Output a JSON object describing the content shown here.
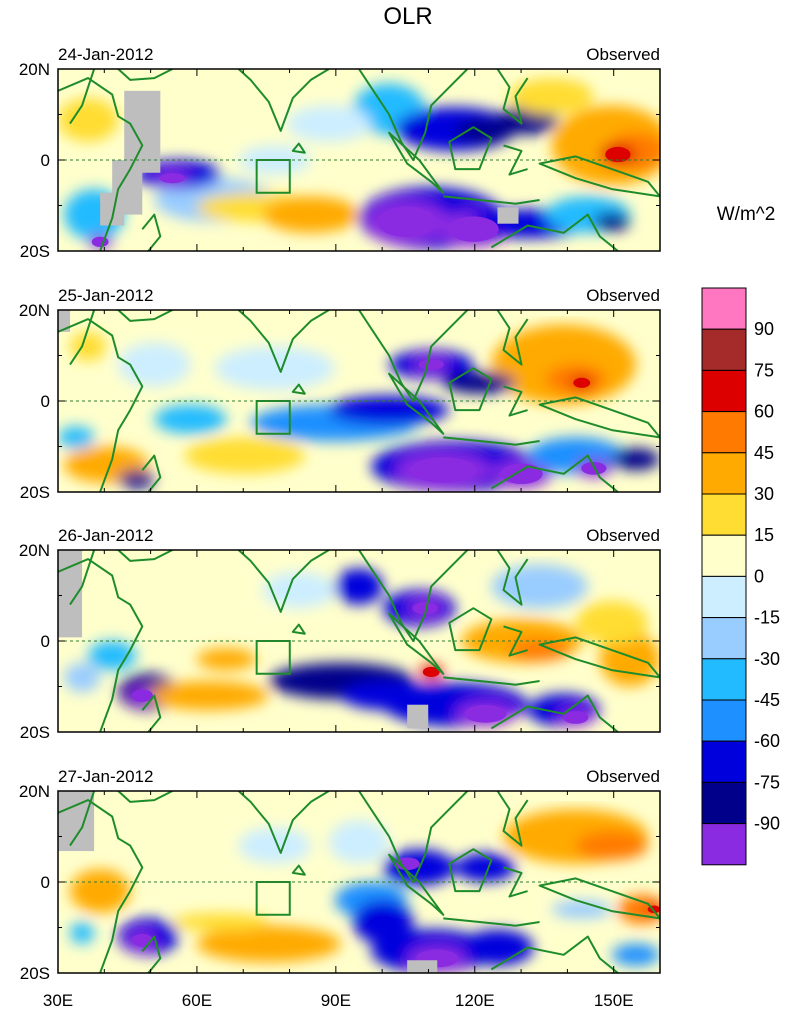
{
  "figure": {
    "title": "OLR",
    "units": "W/m^2"
  },
  "panels": [
    {
      "date": "24-Jan-2012",
      "label": "Observed"
    },
    {
      "date": "25-Jan-2012",
      "label": "Observed"
    },
    {
      "date": "26-Jan-2012",
      "label": "Observed"
    },
    {
      "date": "27-Jan-2012",
      "label": "Observed"
    }
  ],
  "axes": {
    "lat_ticks": [
      "20N",
      "0",
      "20S"
    ],
    "lon_ticks": [
      "30E",
      "60E",
      "90E",
      "120E",
      "150E"
    ],
    "lon_range": [
      30,
      160
    ],
    "lat_range": [
      -20,
      20
    ]
  },
  "colorbar": {
    "levels": [
      "90",
      "75",
      "60",
      "45",
      "30",
      "15",
      "0",
      "-15",
      "-30",
      "-45",
      "-60",
      "-75",
      "-90"
    ],
    "colors": [
      "#ff77c0",
      "#a52a2a",
      "#dd0000",
      "#ff7a00",
      "#ffaa00",
      "#ffdd33",
      "#ffffcc",
      "#cceeff",
      "#99ccff",
      "#22bbff",
      "#1e90ff",
      "#0000dd",
      "#00008b",
      "#8a2be2"
    ]
  },
  "colors": {
    "coast": "#1e8c2a",
    "missing": "#bebebe",
    "equator": "#2e7d32"
  }
}
